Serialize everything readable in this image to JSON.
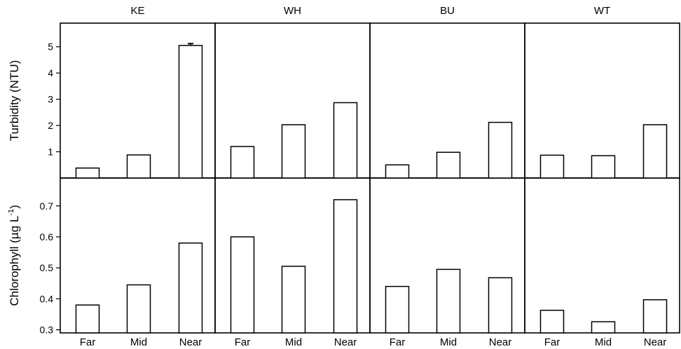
{
  "chart_data": {
    "type": "bar",
    "layout": "small-multiples grid, 2 rows x 4 columns, shared x categories",
    "panels": [
      "KE",
      "WH",
      "BU",
      "WT"
    ],
    "categories": [
      "Far",
      "Mid",
      "Near"
    ],
    "rows": [
      {
        "ylabel": "Turbidity (NTU)",
        "ylim": [
          0,
          5.9
        ],
        "yticks": [
          "1",
          "2",
          "3",
          "4",
          "5"
        ],
        "values": {
          "KE": [
            0.38,
            0.88,
            5.05
          ],
          "WH": [
            1.2,
            2.03,
            2.87
          ],
          "BU": [
            0.5,
            0.98,
            2.12
          ],
          "WT": [
            0.87,
            0.85,
            2.03
          ]
        },
        "error_bar": {
          "panel": "KE",
          "category": "Near",
          "value": 0.07
        }
      },
      {
        "ylabel_main": "Chlorophyll (µg L",
        "ylabel_sup": "-1",
        "ylabel_end": ")",
        "ylim": [
          0.29,
          0.79
        ],
        "yticks": [
          "0.3",
          "0.4",
          "0.5",
          "0.6",
          "0.7"
        ],
        "values": {
          "KE": [
            0.38,
            0.445,
            0.58
          ],
          "WH": [
            0.6,
            0.505,
            0.72
          ],
          "BU": [
            0.44,
            0.495,
            0.468
          ],
          "WT": [
            0.363,
            0.326,
            0.397
          ]
        }
      }
    ],
    "grid": false,
    "legend": "none"
  }
}
